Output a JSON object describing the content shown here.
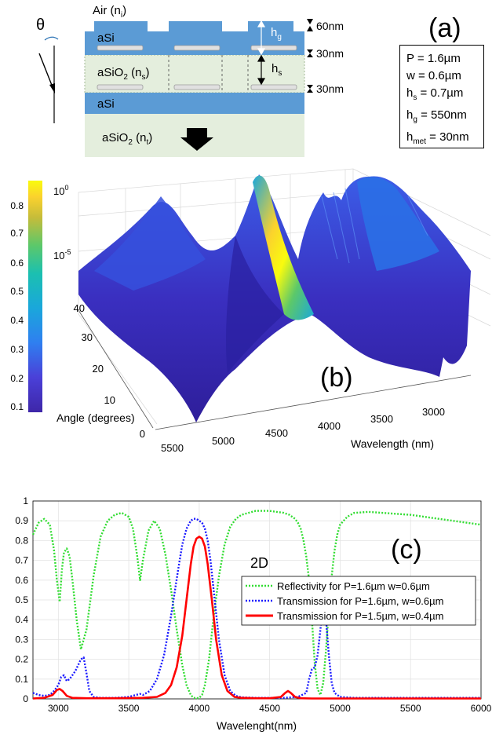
{
  "figure": {
    "panel_a": {
      "label": "(a)",
      "layers": {
        "air": "Air (n",
        "air_sub": "i",
        "asi_top": "aSi",
        "asio2_mid": "aSiO",
        "asio2_mid_sub2": "2",
        "asio2_mid_n": " (n",
        "asio2_mid_sub": "s",
        "asi_bottom": "aSi",
        "asio2_sub": "aSiO",
        "asio2_sub_sub2": "2",
        "asio2_sub_n": " (n",
        "asio2_sub_sub": "t"
      },
      "dims": {
        "d60": "60nm",
        "d30a": "30nm",
        "d30b": "30nm",
        "hg": "h",
        "hg_sub": "g",
        "hs": "h",
        "hs_sub": "s"
      },
      "theta": "θ",
      "params": [
        {
          "text": "P = 1.6µm"
        },
        {
          "text": "w = 0.6µm"
        },
        {
          "pre": "h",
          "sub": "s",
          "post": " = 0.7µm"
        },
        {
          "pre": "h",
          "sub": "g",
          "post": " = 550nm"
        },
        {
          "pre": "h",
          "sub": "met",
          "post": " = 30nm"
        }
      ],
      "colors": {
        "asi": "#5b9bd5",
        "asio2": "#e4eedd",
        "metal": "#d9d9d9"
      }
    },
    "panel_b": {
      "label": "(b)",
      "colorbar_ticks": [
        "0.8",
        "0.7",
        "0.6",
        "0.5",
        "0.4",
        "0.3",
        "0.2",
        "0.1"
      ],
      "z_ticks": {
        "top_base": "10",
        "top_exp": "0",
        "mid_base": "10",
        "mid_exp": "-5"
      },
      "angle_ticks": [
        "40",
        "30",
        "20",
        "10",
        "0"
      ],
      "angle_label": "Angle (degrees)",
      "wavelength_ticks": [
        "5500",
        "5000",
        "4500",
        "4000",
        "3500",
        "3000"
      ],
      "wavelength_label": "Wavelength (nm)",
      "colormap": [
        "#3e26a8",
        "#4a40d8",
        "#2f7ff0",
        "#1aa7db",
        "#1bc0b0",
        "#5cc86a",
        "#c5bc3a",
        "#fbd22d",
        "#f9fb0e"
      ]
    },
    "panel_c": {
      "label": "(c)",
      "annotation": "2D",
      "xlabel": "Wavelenght(nm)",
      "legend": [
        "Reflectivity for P=1.6µm w=0.6µm",
        "Transmission for P=1.6µm, w=0.6µm",
        "Transmission for P=1.5µm, w=0.4µm"
      ]
    }
  },
  "chart_data": [
    {
      "type": "line",
      "panel": "(c)",
      "title": "",
      "xlabel": "Wavelenght(nm)",
      "ylabel": "",
      "xlim": [
        2820,
        6000
      ],
      "ylim": [
        0,
        1
      ],
      "xticks": [
        3000,
        3500,
        4000,
        4500,
        5000,
        5500,
        6000
      ],
      "yticks": [
        0,
        0.1,
        0.2,
        0.3,
        0.4,
        0.5,
        0.6,
        0.7,
        0.8,
        0.9,
        1
      ],
      "grid": true,
      "legend_position": "right",
      "series": [
        {
          "name": "Reflectivity for P=1.6µm w=0.6µm",
          "color": "#33dd33",
          "style": "dotted",
          "x": [
            2820,
            2860,
            2900,
            2940,
            2970,
            2990,
            3010,
            3025,
            3040,
            3060,
            3080,
            3100,
            3130,
            3160,
            3200,
            3250,
            3300,
            3350,
            3400,
            3450,
            3500,
            3530,
            3560,
            3580,
            3600,
            3640,
            3680,
            3720,
            3760,
            3800,
            3840,
            3880,
            3910,
            3940,
            3960,
            3980,
            4000,
            4020,
            4040,
            4070,
            4100,
            4140,
            4180,
            4220,
            4260,
            4300,
            4350,
            4400,
            4450,
            4500,
            4550,
            4600,
            4640,
            4680,
            4700,
            4720,
            4740,
            4760,
            4780,
            4800,
            4820,
            4840,
            4860,
            4880,
            4900,
            4920,
            4940,
            4960,
            4980,
            5000,
            5050,
            5100,
            5200,
            5300,
            5400,
            5500,
            5600,
            5700,
            5800,
            5900,
            6000
          ],
          "y": [
            0.83,
            0.89,
            0.91,
            0.88,
            0.75,
            0.6,
            0.49,
            0.65,
            0.74,
            0.76,
            0.72,
            0.6,
            0.4,
            0.25,
            0.35,
            0.62,
            0.82,
            0.9,
            0.93,
            0.94,
            0.92,
            0.86,
            0.72,
            0.6,
            0.7,
            0.85,
            0.9,
            0.86,
            0.73,
            0.55,
            0.35,
            0.17,
            0.07,
            0.02,
            0.005,
            0.003,
            0.005,
            0.02,
            0.07,
            0.2,
            0.4,
            0.62,
            0.78,
            0.87,
            0.91,
            0.93,
            0.94,
            0.95,
            0.95,
            0.95,
            0.945,
            0.94,
            0.93,
            0.91,
            0.89,
            0.86,
            0.8,
            0.72,
            0.6,
            0.4,
            0.18,
            0.05,
            0.02,
            0.08,
            0.25,
            0.45,
            0.62,
            0.75,
            0.83,
            0.88,
            0.92,
            0.94,
            0.945,
            0.94,
            0.935,
            0.93,
            0.92,
            0.91,
            0.9,
            0.89,
            0.88
          ]
        },
        {
          "name": "Transmission for P=1.6µm, w=0.6µm",
          "color": "#1a1aff",
          "style": "dotted",
          "x": [
            2820,
            2860,
            2900,
            2940,
            2970,
            3000,
            3020,
            3040,
            3060,
            3080,
            3100,
            3120,
            3140,
            3160,
            3180,
            3200,
            3220,
            3250,
            3300,
            3400,
            3500,
            3550,
            3580,
            3600,
            3650,
            3700,
            3750,
            3800,
            3850,
            3880,
            3910,
            3940,
            3960,
            3980,
            4000,
            4020,
            4040,
            4060,
            4080,
            4110,
            4140,
            4180,
            4220,
            4260,
            4300,
            4400,
            4500,
            4600,
            4700,
            4760,
            4780,
            4800,
            4820,
            4840,
            4860,
            4880,
            4900,
            4920,
            4940,
            4960,
            5000,
            5100,
            5300,
            5500,
            5800,
            6000
          ],
          "y": [
            0.03,
            0.02,
            0.015,
            0.02,
            0.04,
            0.07,
            0.11,
            0.12,
            0.09,
            0.1,
            0.12,
            0.14,
            0.17,
            0.2,
            0.21,
            0.13,
            0.04,
            0.01,
            0.005,
            0.005,
            0.01,
            0.02,
            0.025,
            0.02,
            0.04,
            0.1,
            0.22,
            0.42,
            0.65,
            0.78,
            0.86,
            0.9,
            0.91,
            0.91,
            0.9,
            0.89,
            0.86,
            0.8,
            0.7,
            0.5,
            0.3,
            0.12,
            0.04,
            0.015,
            0.008,
            0.005,
            0.005,
            0.005,
            0.01,
            0.03,
            0.1,
            0.15,
            0.16,
            0.22,
            0.35,
            0.49,
            0.4,
            0.22,
            0.08,
            0.03,
            0.01,
            0.005,
            0.005,
            0.005,
            0.005,
            0.005
          ]
        },
        {
          "name": "Transmission for P=1.5µm, w=0.4µm",
          "color": "#ff0000",
          "style": "solid",
          "x": [
            2820,
            2900,
            2960,
            2990,
            3010,
            3030,
            3060,
            3100,
            3200,
            3400,
            3600,
            3700,
            3760,
            3800,
            3840,
            3880,
            3910,
            3940,
            3960,
            3980,
            4000,
            4020,
            4040,
            4060,
            4090,
            4120,
            4160,
            4200,
            4250,
            4300,
            4400,
            4500,
            4580,
            4610,
            4630,
            4650,
            4680,
            4720,
            4800,
            5000,
            5500,
            6000
          ],
          "y": [
            0.002,
            0.005,
            0.02,
            0.045,
            0.05,
            0.04,
            0.015,
            0.005,
            0.003,
            0.003,
            0.005,
            0.01,
            0.03,
            0.07,
            0.16,
            0.32,
            0.5,
            0.68,
            0.77,
            0.81,
            0.82,
            0.81,
            0.77,
            0.68,
            0.5,
            0.3,
            0.12,
            0.04,
            0.01,
            0.005,
            0.003,
            0.003,
            0.01,
            0.03,
            0.04,
            0.03,
            0.01,
            0.003,
            0.002,
            0.002,
            0.002,
            0.002
          ]
        }
      ]
    }
  ]
}
